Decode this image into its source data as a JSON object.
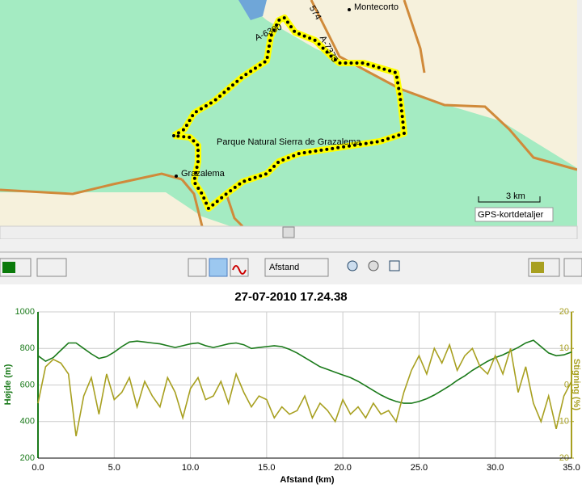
{
  "map": {
    "labels": [
      "Montecorto",
      "574",
      "A-6300",
      "A-7375",
      "Parque Natural Sierra de Grazalema",
      "Grazalema"
    ],
    "scale": "3 km",
    "attribution": "GPS-kortdetaljer"
  },
  "toolbar": {
    "mode": "Afstand"
  },
  "chart_data": {
    "type": "line",
    "title": "27-07-2010 17.24.38",
    "x_label": "Afstand (km)",
    "y_label": "Højde (m)",
    "y2_label": "Stigning (%)",
    "x": [
      0,
      0.5,
      1,
      1.5,
      2,
      2.5,
      3,
      3.5,
      4,
      4.5,
      5,
      5.5,
      6,
      6.5,
      7,
      7.5,
      8,
      8.5,
      9,
      9.5,
      10,
      10.5,
      11,
      11.5,
      12,
      12.5,
      13,
      13.5,
      14,
      14.5,
      15,
      15.5,
      16,
      16.5,
      17,
      17.5,
      18,
      18.5,
      19,
      19.5,
      20,
      20.5,
      21,
      21.5,
      22,
      22.5,
      23,
      23.5,
      24,
      24.5,
      25,
      25.5,
      26,
      26.5,
      27,
      27.5,
      28,
      28.5,
      29,
      29.5,
      30,
      30.5,
      31,
      31.5,
      32,
      32.5,
      33,
      33.5,
      34,
      34.5,
      35
    ],
    "series": [
      {
        "color": "#1a7a1a",
        "values": [
          760,
          730,
          750,
          790,
          830,
          830,
          800,
          770,
          745,
          755,
          780,
          810,
          835,
          840,
          835,
          830,
          825,
          815,
          805,
          815,
          825,
          830,
          815,
          805,
          815,
          825,
          830,
          820,
          800,
          805,
          810,
          815,
          810,
          795,
          775,
          750,
          725,
          700,
          685,
          670,
          655,
          640,
          620,
          595,
          570,
          545,
          525,
          510,
          500,
          500,
          510,
          525,
          545,
          570,
          595,
          625,
          650,
          680,
          705,
          730,
          750,
          765,
          785,
          805,
          830,
          845,
          810,
          775,
          760,
          765,
          780
        ]
      },
      {
        "color": "#a8a020",
        "axis": "y2",
        "values": [
          -5,
          5,
          7,
          6,
          3,
          -14,
          -3,
          2,
          -8,
          3,
          -4,
          -2,
          2,
          -6,
          1,
          -3,
          -6,
          2,
          -2,
          -9,
          -1,
          2,
          -4,
          -3,
          1,
          -5,
          3,
          -2,
          -6,
          -3,
          -4,
          -9,
          -6,
          -8,
          -7,
          -3,
          -9,
          -5,
          -7,
          -10,
          -4,
          -8,
          -6,
          -9,
          -5,
          -8,
          -7,
          -10,
          -2,
          4,
          8,
          3,
          10,
          6,
          11,
          4,
          8,
          10,
          5,
          3,
          8,
          3,
          10,
          -2,
          5,
          -5,
          -10,
          -3,
          -12,
          -3,
          1
        ]
      }
    ],
    "xlim": [
      0,
      35
    ],
    "ylim": [
      200,
      1000
    ],
    "y2lim": [
      -20,
      20
    ],
    "xticks": [
      {
        "value": 0,
        "label": "0.0"
      },
      {
        "value": 5,
        "label": "5.0"
      },
      {
        "value": 10,
        "label": "10.0"
      },
      {
        "value": 15,
        "label": "15.0"
      },
      {
        "value": 20,
        "label": "20.0"
      },
      {
        "value": 25,
        "label": "25.0"
      },
      {
        "value": 30,
        "label": "30.0"
      },
      {
        "value": 35,
        "label": "35.0"
      }
    ],
    "yticks": [
      200,
      400,
      600,
      800,
      1000
    ],
    "y2ticks": [
      -20,
      -10,
      0,
      10,
      20
    ],
    "grid": true
  }
}
